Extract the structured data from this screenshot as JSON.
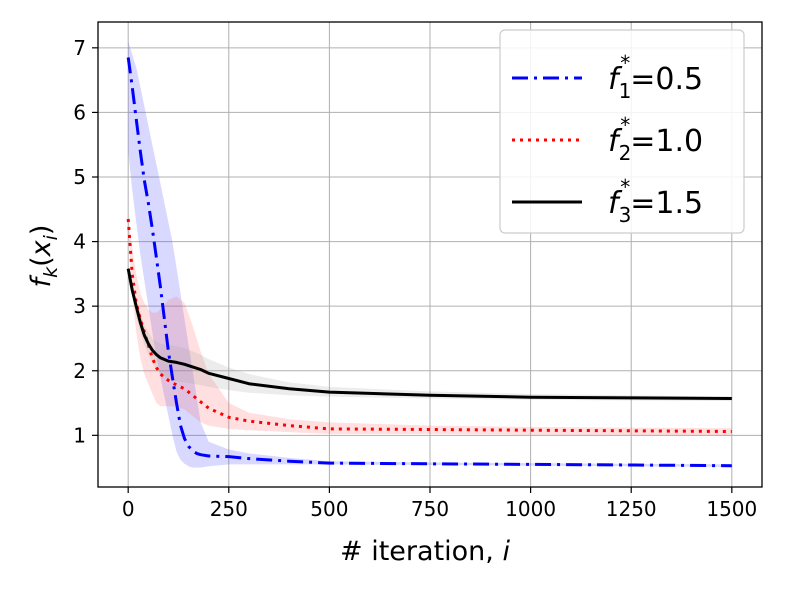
{
  "chart_data": {
    "type": "line",
    "xlabel_main": "# iteration, ",
    "xlabel_var": "i",
    "ylabel_f": "f",
    "ylabel_sub": "k",
    "ylabel_open": "(",
    "ylabel_x": "x",
    "ylabel_xsub": "i",
    "ylabel_close": ")",
    "xlim": [
      -75,
      1575
    ],
    "ylim": [
      0.2,
      7.4
    ],
    "x_ticks": [
      0,
      250,
      500,
      750,
      1000,
      1250,
      1500
    ],
    "y_ticks": [
      1,
      2,
      3,
      4,
      5,
      6,
      7
    ],
    "grid": true,
    "legend_position": "top-right",
    "series": [
      {
        "name": "f₁*=0.5",
        "name_f": "f",
        "name_sub": "1",
        "name_sup": "*",
        "name_value": "=0.5",
        "color": "#0000ff",
        "fill_color": "#4040ff",
        "dash": "16,6,3,6",
        "x": [
          0,
          10,
          20,
          30,
          40,
          50,
          60,
          70,
          80,
          90,
          100,
          110,
          120,
          130,
          140,
          150,
          160,
          170,
          180,
          200,
          250,
          300,
          400,
          500,
          750,
          1000,
          1250,
          1500
        ],
        "y": [
          6.85,
          6.4,
          5.9,
          5.4,
          4.95,
          4.6,
          4.2,
          3.75,
          3.3,
          2.8,
          2.3,
          1.9,
          1.5,
          1.15,
          0.95,
          0.83,
          0.76,
          0.72,
          0.7,
          0.68,
          0.67,
          0.64,
          0.6,
          0.57,
          0.56,
          0.55,
          0.54,
          0.53
        ],
        "upper": [
          7.1,
          6.9,
          6.7,
          6.4,
          6.1,
          5.8,
          5.5,
          5.2,
          4.9,
          4.6,
          4.3,
          4.0,
          3.6,
          3.2,
          2.8,
          2.4,
          2.0,
          1.6,
          1.2,
          0.9,
          0.78,
          0.72,
          0.65,
          0.6,
          0.58,
          0.57,
          0.56,
          0.55
        ],
        "lower": [
          5.4,
          4.8,
          4.3,
          3.8,
          3.4,
          3.0,
          2.6,
          2.2,
          1.9,
          1.6,
          1.3,
          1.0,
          0.75,
          0.62,
          0.56,
          0.52,
          0.5,
          0.5,
          0.5,
          0.52,
          0.55,
          0.55,
          0.55,
          0.55,
          0.54,
          0.53,
          0.52,
          0.51
        ]
      },
      {
        "name": "f₂*=1.0",
        "name_f": "f",
        "name_sub": "2",
        "name_sup": "*",
        "name_value": "=1.0",
        "color": "#ff0000",
        "fill_color": "#ff6060",
        "dash": "3,5",
        "x": [
          0,
          10,
          20,
          30,
          40,
          50,
          60,
          70,
          80,
          100,
          120,
          140,
          160,
          180,
          200,
          250,
          300,
          400,
          500,
          750,
          1000,
          1250,
          1500
        ],
        "y": [
          4.35,
          3.5,
          3.05,
          2.8,
          2.6,
          2.4,
          2.2,
          2.05,
          1.95,
          1.85,
          1.78,
          1.72,
          1.62,
          1.52,
          1.42,
          1.28,
          1.22,
          1.15,
          1.1,
          1.09,
          1.08,
          1.07,
          1.06
        ],
        "upper": [
          4.4,
          3.9,
          3.5,
          3.2,
          3.05,
          2.95,
          2.9,
          2.9,
          2.95,
          3.1,
          3.15,
          3.05,
          2.7,
          2.3,
          1.95,
          1.5,
          1.35,
          1.25,
          1.2,
          1.15,
          1.13,
          1.12,
          1.11
        ],
        "lower": [
          4.2,
          3.2,
          2.6,
          2.2,
          1.95,
          1.8,
          1.65,
          1.5,
          1.45,
          1.45,
          1.45,
          1.4,
          1.3,
          1.2,
          1.15,
          1.1,
          1.08,
          1.05,
          1.02,
          1.02,
          1.01,
          1.0,
          1.0
        ]
      },
      {
        "name": "f₃*=1.5",
        "name_f": "f",
        "name_sub": "3",
        "name_sup": "*",
        "name_value": "=1.5",
        "color": "#000000",
        "fill_color": "#a0a0a0",
        "dash": "",
        "x": [
          0,
          10,
          20,
          30,
          40,
          50,
          60,
          70,
          80,
          100,
          120,
          140,
          160,
          180,
          200,
          250,
          300,
          400,
          500,
          750,
          1000,
          1250,
          1500
        ],
        "y": [
          3.58,
          3.25,
          3.0,
          2.75,
          2.55,
          2.42,
          2.32,
          2.25,
          2.2,
          2.15,
          2.13,
          2.1,
          2.06,
          2.02,
          1.96,
          1.88,
          1.8,
          1.72,
          1.67,
          1.62,
          1.59,
          1.58,
          1.57
        ],
        "upper": [
          3.65,
          3.35,
          3.1,
          2.9,
          2.7,
          2.6,
          2.5,
          2.45,
          2.42,
          2.4,
          2.38,
          2.35,
          2.3,
          2.25,
          2.18,
          2.05,
          1.95,
          1.82,
          1.75,
          1.68,
          1.64,
          1.62,
          1.6
        ],
        "lower": [
          3.5,
          3.15,
          2.85,
          2.6,
          2.4,
          2.25,
          2.12,
          2.02,
          1.95,
          1.88,
          1.84,
          1.82,
          1.8,
          1.78,
          1.75,
          1.7,
          1.66,
          1.62,
          1.6,
          1.57,
          1.55,
          1.54,
          1.53
        ]
      }
    ]
  }
}
